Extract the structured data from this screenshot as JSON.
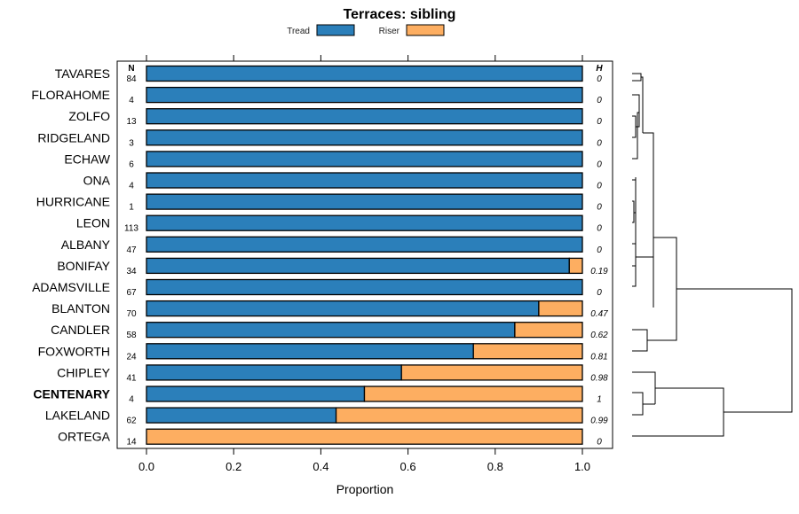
{
  "chart_data": {
    "type": "bar",
    "stacked": true,
    "horizontal": true,
    "title": "Terraces: sibling",
    "xlabel": "Proportion",
    "xlim": [
      0,
      1
    ],
    "xticks": [
      "0.0",
      "0.2",
      "0.4",
      "0.6",
      "0.8",
      "1.0"
    ],
    "n_header": "N",
    "h_header": "H",
    "legend_position": "top-center",
    "categories": [
      "TAVARES",
      "FLORAHOME",
      "ZOLFO",
      "RIDGELAND",
      "ECHAW",
      "ONA",
      "HURRICANE",
      "LEON",
      "ALBANY",
      "BONIFAY",
      "ADAMSVILLE",
      "BLANTON",
      "CANDLER",
      "FOXWORTH",
      "CHIPLEY",
      "CENTENARY",
      "LAKELAND",
      "ORTEGA"
    ],
    "highlighted_category": "CENTENARY",
    "n_values": [
      "84",
      "4",
      "13",
      "3",
      "6",
      "4",
      "1",
      "113",
      "47",
      "34",
      "67",
      "70",
      "58",
      "24",
      "41",
      "4",
      "62",
      "14"
    ],
    "h_values": [
      "0",
      "0",
      "0",
      "0",
      "0",
      "0",
      "0",
      "0",
      "0",
      "0.19",
      "0",
      "0.47",
      "0.62",
      "0.81",
      "0.98",
      "1",
      "0.99",
      "0"
    ],
    "series": [
      {
        "name": "Tread",
        "color": "#2b7fba",
        "values": [
          1,
          1,
          1,
          1,
          1,
          1,
          1,
          1,
          1,
          0.97,
          1,
          0.9,
          0.845,
          0.75,
          0.585,
          0.5,
          0.435,
          0
        ]
      },
      {
        "name": "Riser",
        "color": "#fdae61",
        "values": [
          0,
          0,
          0,
          0,
          0,
          0,
          0,
          0,
          0,
          0.03,
          0,
          0.1,
          0.155,
          0.25,
          0.415,
          0.5,
          0.565,
          1
        ]
      }
    ],
    "dendrogram": "present"
  }
}
